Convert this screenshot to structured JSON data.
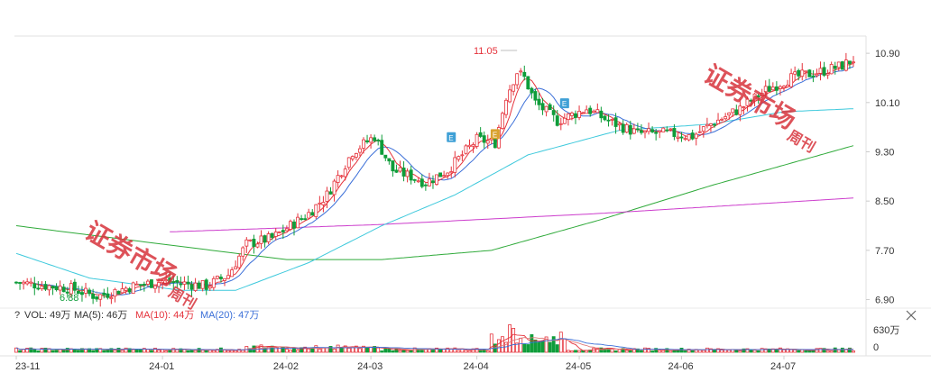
{
  "chart_data": {
    "type": "candlestick",
    "price_axis": {
      "ticks": [
        "10.90",
        "10.10",
        "9.30",
        "8.50",
        "7.70",
        "6.90"
      ],
      "min": 6.82,
      "max": 11.18
    },
    "x_axis": {
      "ticks": [
        "23-11",
        "24-01",
        "24-02",
        "24-03",
        "24-04",
        "24-05",
        "24-06",
        "24-07"
      ],
      "tick_index": [
        0,
        40,
        74,
        97,
        126,
        154,
        182,
        210
      ]
    },
    "annotations": {
      "high": "11.05",
      "low": "6.88"
    },
    "markers": [
      {
        "label": "E",
        "index": 119,
        "value": 9.53,
        "color": "#3fa0d6"
      },
      {
        "label": "E",
        "index": 131,
        "value": 9.58,
        "color": "#d9a22e"
      },
      {
        "label": "E",
        "index": 150,
        "value": 10.08,
        "color": "#3fa0d6"
      }
    ],
    "volume_legend": {
      "icon": "?",
      "vol": "VOL: 49万",
      "ma5": "MA(5): 46万",
      "ma10": "MA(10): 44万",
      "ma20": "MA(20): 47万"
    },
    "volume_axis": {
      "ticks": [
        "630万",
        "0"
      ],
      "max": 630
    },
    "colors": {
      "up": "#e5323b",
      "down": "#0f9d3a",
      "ma5": "#e5323b",
      "ma10": "#3b6fd8",
      "ma20": "#3ec9dc",
      "ma60": "#2faa3a",
      "ma120": "#cc3ccc"
    },
    "watermark": {
      "text": "证券市场",
      "sub": "周刊"
    },
    "ohlc_anchors": [
      {
        "i": 0,
        "v": 7.18
      },
      {
        "i": 15,
        "v": 7.08
      },
      {
        "i": 22,
        "v": 6.95
      },
      {
        "i": 32,
        "v": 7.12
      },
      {
        "i": 40,
        "v": 7.2
      },
      {
        "i": 52,
        "v": 7.12
      },
      {
        "i": 58,
        "v": 7.3
      },
      {
        "i": 63,
        "v": 7.8
      },
      {
        "i": 70,
        "v": 7.9
      },
      {
        "i": 80,
        "v": 8.3
      },
      {
        "i": 85,
        "v": 8.6
      },
      {
        "i": 92,
        "v": 9.3
      },
      {
        "i": 98,
        "v": 9.55
      },
      {
        "i": 103,
        "v": 9.0
      },
      {
        "i": 108,
        "v": 8.9
      },
      {
        "i": 112,
        "v": 8.8
      },
      {
        "i": 118,
        "v": 9.0
      },
      {
        "i": 126,
        "v": 9.5
      },
      {
        "i": 131,
        "v": 9.45
      },
      {
        "i": 134,
        "v": 10.2
      },
      {
        "i": 137,
        "v": 10.6
      },
      {
        "i": 139,
        "v": 10.5
      },
      {
        "i": 142,
        "v": 10.1
      },
      {
        "i": 148,
        "v": 9.8
      },
      {
        "i": 156,
        "v": 10.0
      },
      {
        "i": 162,
        "v": 9.8
      },
      {
        "i": 170,
        "v": 9.6
      },
      {
        "i": 178,
        "v": 9.6
      },
      {
        "i": 185,
        "v": 9.55
      },
      {
        "i": 190,
        "v": 9.75
      },
      {
        "i": 198,
        "v": 10.0
      },
      {
        "i": 205,
        "v": 10.3
      },
      {
        "i": 212,
        "v": 10.5
      },
      {
        "i": 220,
        "v": 10.6
      },
      {
        "i": 226,
        "v": 10.7
      },
      {
        "i": 229,
        "v": 10.8
      }
    ],
    "ma_lines": {
      "ma60": [
        {
          "i": 0,
          "v": 8.1
        },
        {
          "i": 40,
          "v": 7.8
        },
        {
          "i": 74,
          "v": 7.55
        },
        {
          "i": 100,
          "v": 7.55
        },
        {
          "i": 130,
          "v": 7.7
        },
        {
          "i": 160,
          "v": 8.2
        },
        {
          "i": 190,
          "v": 8.75
        },
        {
          "i": 229,
          "v": 9.4
        }
      ],
      "ma120": [
        {
          "i": 42,
          "v": 8.0
        },
        {
          "i": 100,
          "v": 8.12
        },
        {
          "i": 160,
          "v": 8.3
        },
        {
          "i": 229,
          "v": 8.55
        }
      ],
      "ma20": [
        {
          "i": 0,
          "v": 7.65
        },
        {
          "i": 20,
          "v": 7.25
        },
        {
          "i": 45,
          "v": 7.05
        },
        {
          "i": 60,
          "v": 7.05
        },
        {
          "i": 80,
          "v": 7.5
        },
        {
          "i": 100,
          "v": 8.1
        },
        {
          "i": 120,
          "v": 8.6
        },
        {
          "i": 140,
          "v": 9.25
        },
        {
          "i": 165,
          "v": 9.65
        },
        {
          "i": 190,
          "v": 9.75
        },
        {
          "i": 210,
          "v": 9.95
        },
        {
          "i": 229,
          "v": 10.0
        }
      ]
    }
  }
}
